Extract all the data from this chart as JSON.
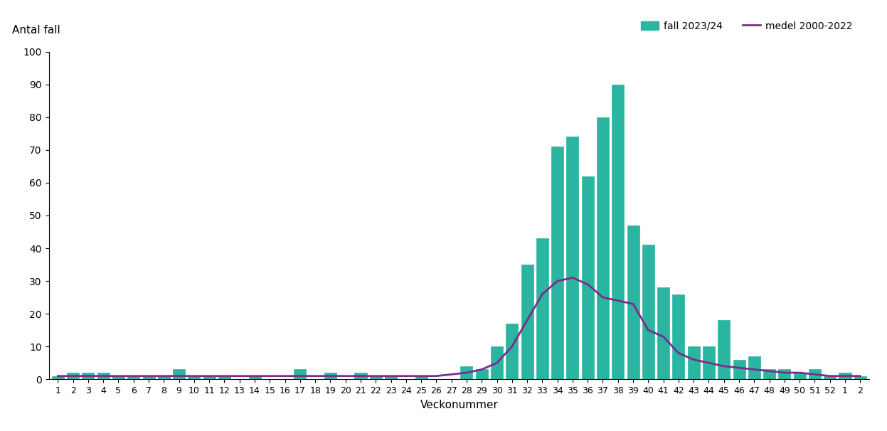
{
  "title_ylabel": "Antal fall",
  "xlabel": "Veckonummer",
  "legend_bar": "fall 2023/24",
  "legend_line": "medel 2000-2022",
  "bar_color": "#2ab5a0",
  "line_color": "#7b2d8b",
  "ylim": [
    0,
    100
  ],
  "yticks": [
    0,
    10,
    20,
    30,
    40,
    50,
    60,
    70,
    80,
    90,
    100
  ],
  "week_labels": [
    "1",
    "2",
    "3",
    "4",
    "5",
    "6",
    "7",
    "8",
    "9",
    "10",
    "11",
    "12",
    "13",
    "14",
    "15",
    "16",
    "17",
    "18",
    "19",
    "20",
    "21",
    "22",
    "23",
    "24",
    "25",
    "26",
    "27",
    "28",
    "29",
    "30",
    "31",
    "32",
    "33",
    "34",
    "35",
    "36",
    "37",
    "38",
    "39",
    "40",
    "41",
    "42",
    "43",
    "44",
    "45",
    "46",
    "47",
    "48",
    "49",
    "50",
    "51",
    "52",
    "1",
    "2"
  ],
  "bar_values": [
    1,
    2,
    2,
    2,
    1,
    1,
    1,
    1,
    3,
    1,
    1,
    1,
    0,
    1,
    0,
    0,
    3,
    0,
    2,
    0,
    2,
    1,
    1,
    0,
    1,
    0,
    0,
    4,
    3,
    10,
    17,
    35,
    43,
    71,
    74,
    62,
    80,
    90,
    47,
    41,
    28,
    26,
    10,
    10,
    18,
    6,
    7,
    3,
    3,
    2,
    3,
    1,
    2,
    1
  ],
  "medel_values": [
    1.0,
    1.0,
    1.0,
    1.0,
    1.0,
    1.0,
    1.0,
    1.0,
    1.0,
    1.0,
    1.0,
    1.0,
    1.0,
    1.0,
    1.0,
    1.0,
    1.0,
    1.0,
    1.0,
    1.0,
    1.0,
    1.0,
    1.0,
    1.0,
    1.0,
    1.0,
    1.5,
    2.0,
    3.0,
    5.0,
    10.0,
    18.0,
    26.0,
    30.0,
    31.0,
    29.0,
    25.0,
    24.0,
    23.0,
    15.0,
    13.0,
    8.0,
    6.0,
    5.0,
    4.0,
    3.5,
    3.0,
    2.5,
    2.0,
    2.0,
    1.5,
    1.0,
    1.0,
    1.0
  ],
  "background_color": "#ffffff"
}
